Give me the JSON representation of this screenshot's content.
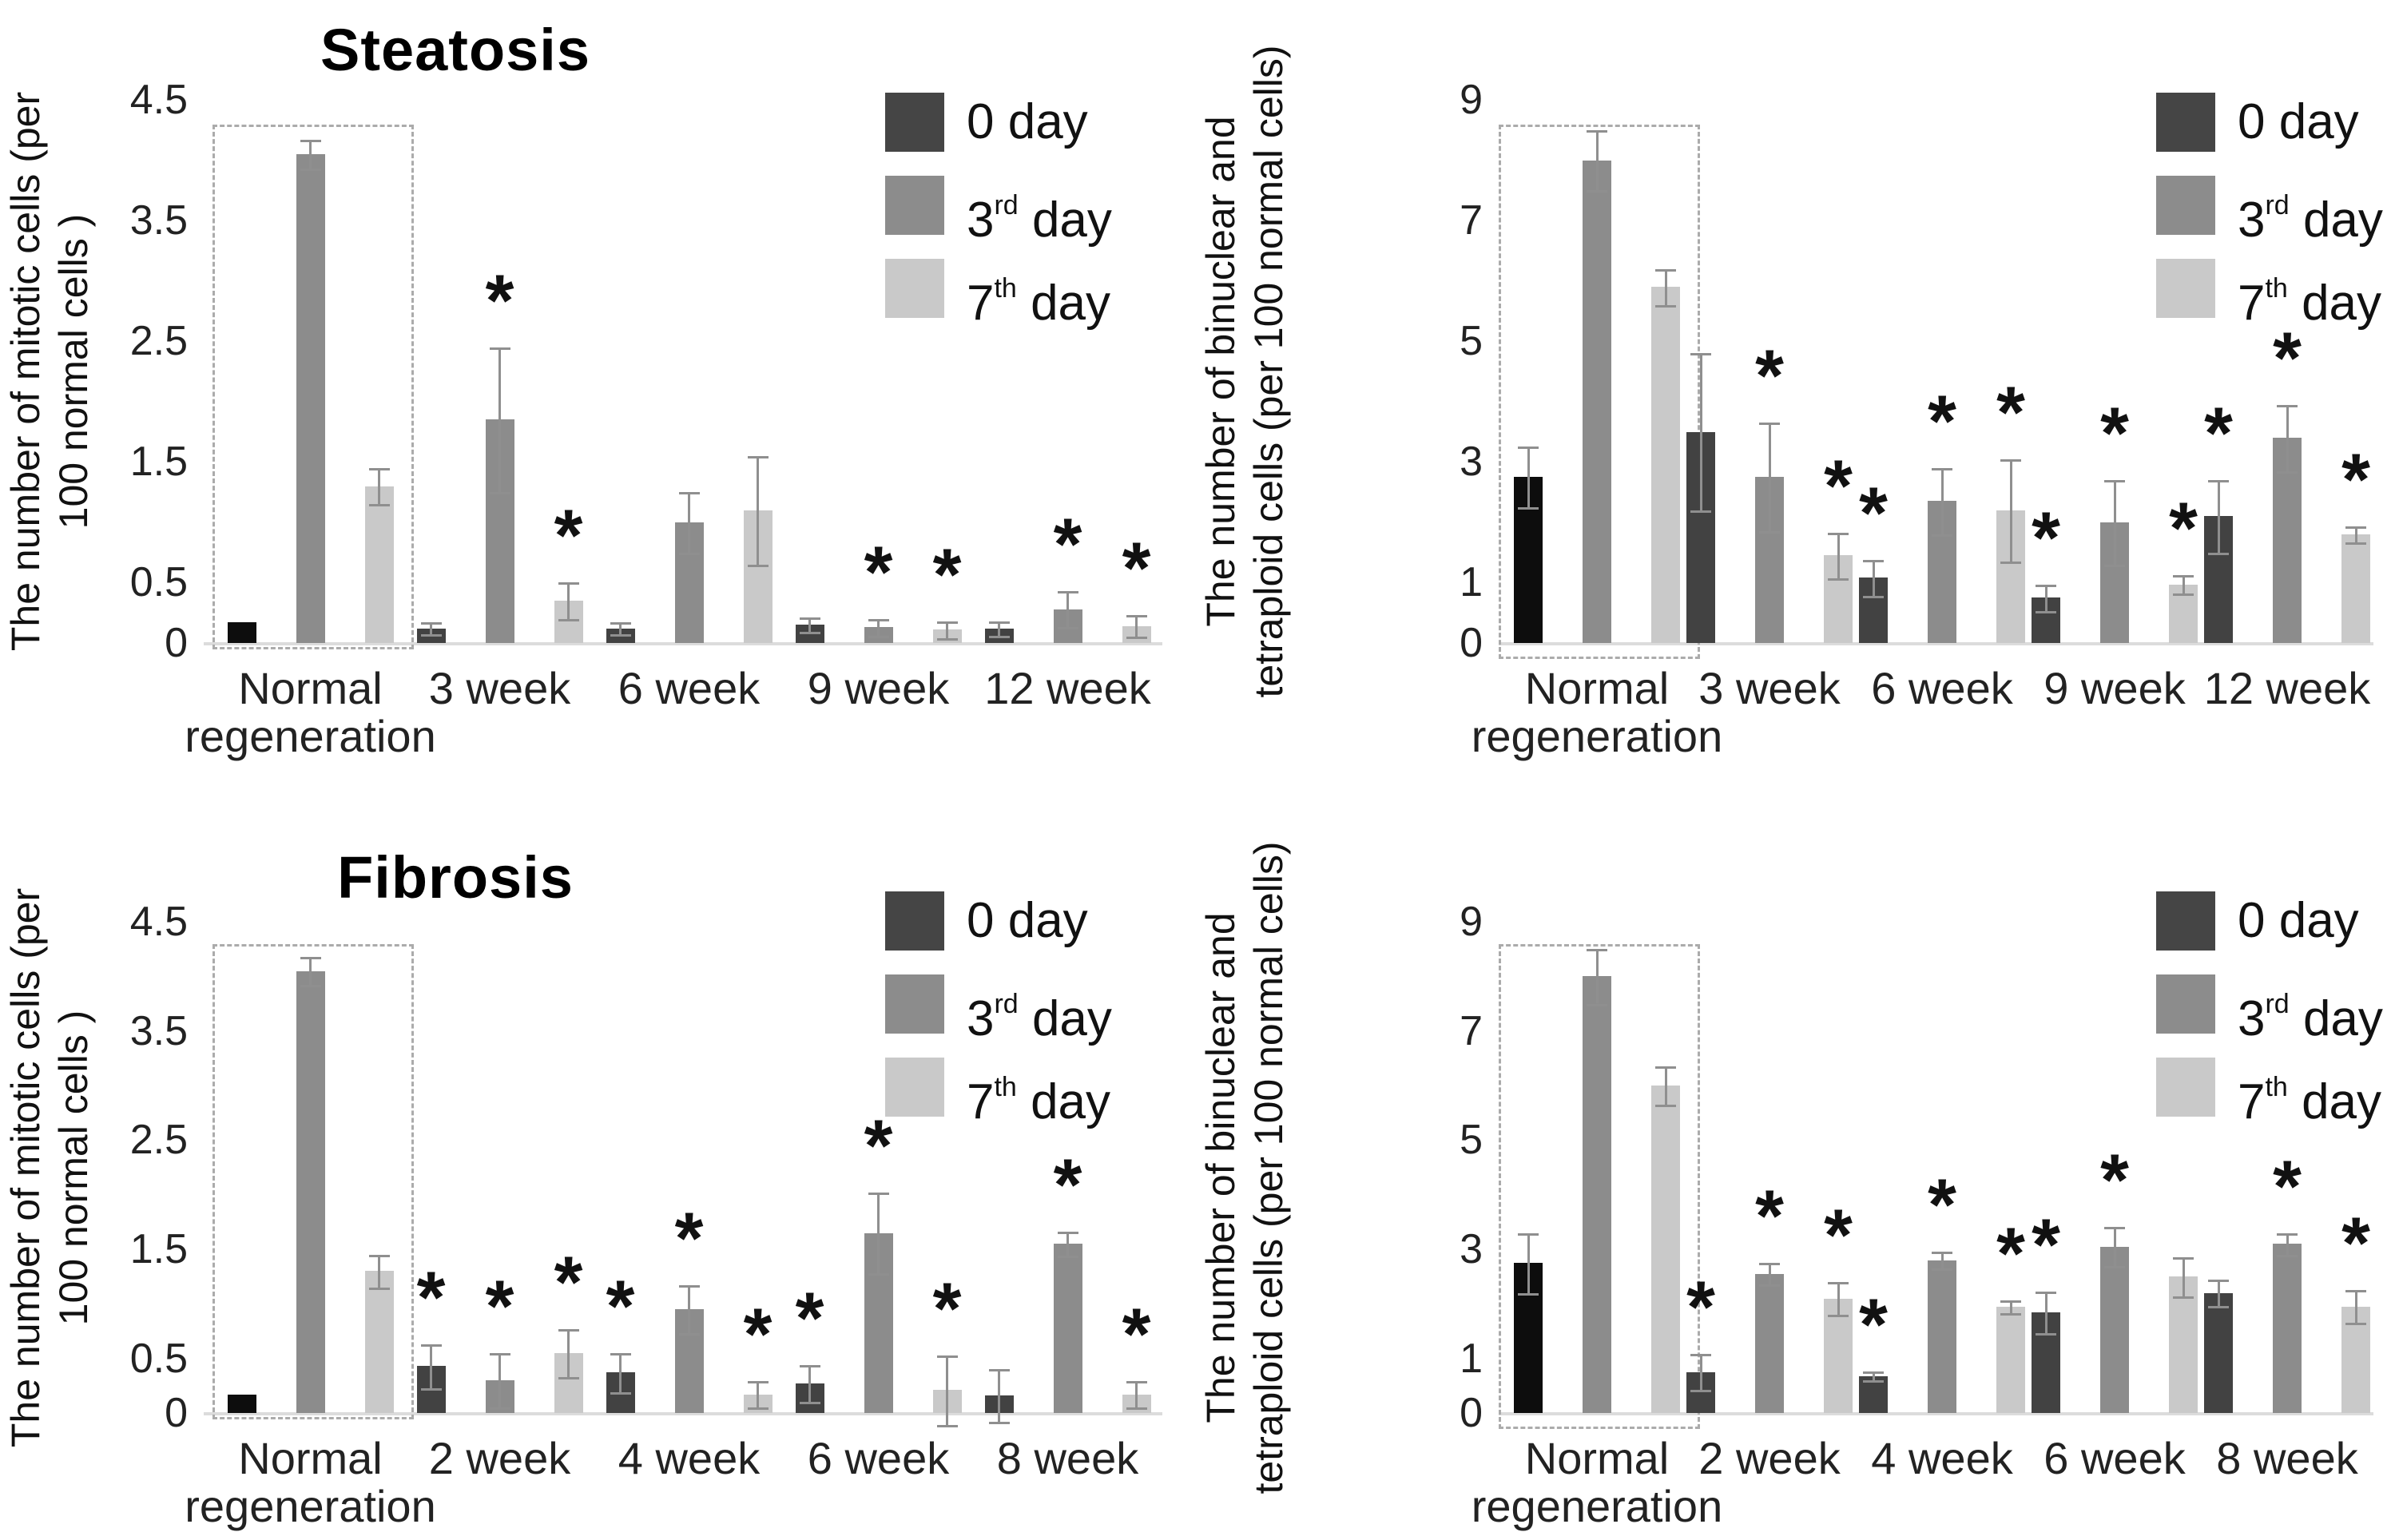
{
  "figure": {
    "background": "#ffffff",
    "panel_titles": [
      "Steatosis",
      "Fibrosis"
    ]
  },
  "legend": {
    "items": [
      {
        "label": "0 day",
        "label_num": "0",
        "label_sup": "",
        "label_rest": " day",
        "color": "#454545"
      },
      {
        "label": "3rd day",
        "label_num": "3",
        "label_sup": "rd",
        "label_rest": " day",
        "color": "#8c8c8c"
      },
      {
        "label": "7th day",
        "label_num": "7",
        "label_sup": "th",
        "label_rest": " day",
        "color": "#c9c9c9"
      }
    ]
  },
  "colors": {
    "series": [
      "#424242",
      "#8c8c8c",
      "#c9c9c9"
    ],
    "normal_regeneration_day0": "#0d0d0d",
    "error_bar": "#8f8f8f",
    "baseline": "#dcdcdc",
    "highlight_box_border": "#ababab"
  },
  "chart_data": [
    {
      "id": "steatosis-mitotic",
      "type": "bar",
      "title": "Steatosis",
      "ylabel_lines": [
        "The number of mitotic cells (per",
        "100 normal cells )"
      ],
      "ylim": [
        0,
        4.5
      ],
      "yticks": [
        0,
        0.5,
        1.5,
        2.5,
        3.5,
        4.5
      ],
      "grid": false,
      "legend_position": "top-right",
      "highlight_box_group": 0,
      "categories": [
        "Normal\nregeneration",
        "3 week",
        "6 week",
        "9 week",
        "12 week"
      ],
      "series": [
        {
          "name": "0 day",
          "values": [
            0.17,
            0.12,
            0.12,
            0.15,
            0.12
          ],
          "errors": [
            null,
            0.05,
            0.05,
            0.06,
            0.06
          ],
          "asterisks": [
            false,
            false,
            false,
            false,
            false
          ]
        },
        {
          "name": "3rd day",
          "values": [
            4.05,
            1.85,
            1.0,
            0.13,
            0.28
          ],
          "errors": [
            0.12,
            0.6,
            0.25,
            0.07,
            0.15
          ],
          "asterisks": [
            false,
            true,
            false,
            true,
            true
          ]
        },
        {
          "name": "7th day",
          "values": [
            1.3,
            0.35,
            1.1,
            0.11,
            0.14
          ],
          "errors": [
            0.15,
            0.15,
            0.45,
            0.07,
            0.09
          ],
          "asterisks": [
            false,
            true,
            false,
            true,
            true
          ]
        }
      ]
    },
    {
      "id": "steatosis-binuclear",
      "type": "bar",
      "title": "",
      "ylabel_lines": [
        "The number of binuclear and",
        "tetraploid cells (per 100 normal cells)"
      ],
      "ylim": [
        0,
        9
      ],
      "yticks": [
        0,
        1,
        3,
        5,
        7,
        9
      ],
      "grid": false,
      "legend_position": "top-right",
      "highlight_box_group": 0,
      "categories": [
        "Normal\nregeneration",
        "3 week",
        "6 week",
        "9 week",
        "12 week"
      ],
      "series": [
        {
          "name": "0 day",
          "values": [
            2.75,
            3.5,
            1.08,
            0.75,
            2.1
          ],
          "errors": [
            0.5,
            1.3,
            0.3,
            0.22,
            0.6
          ],
          "asterisks": [
            false,
            false,
            true,
            true,
            true
          ]
        },
        {
          "name": "3rd day",
          "values": [
            8.0,
            2.75,
            2.35,
            2.0,
            3.4
          ],
          "errors": [
            0.5,
            0.9,
            0.55,
            0.7,
            0.55
          ],
          "asterisks": [
            false,
            true,
            true,
            true,
            true
          ]
        },
        {
          "name": "7th day",
          "values": [
            5.9,
            1.45,
            2.2,
            0.97,
            1.8
          ],
          "errors": [
            0.3,
            0.38,
            0.85,
            0.15,
            0.13
          ],
          "asterisks": [
            false,
            true,
            true,
            true,
            true
          ]
        }
      ]
    },
    {
      "id": "fibrosis-mitotic",
      "type": "bar",
      "title": "Fibrosis",
      "ylabel_lines": [
        "The number of mitotic cells (per",
        "100 normal cells )"
      ],
      "ylim": [
        0,
        4.5
      ],
      "yticks": [
        0,
        0.5,
        1.5,
        2.5,
        3.5,
        4.5
      ],
      "grid": false,
      "legend_position": "top-right",
      "highlight_box_group": 0,
      "categories": [
        "Normal\nregeneration",
        "2 week",
        "4 week",
        "6 week",
        "8 week"
      ],
      "series": [
        {
          "name": "0 day",
          "values": [
            0.17,
            0.43,
            0.37,
            0.27,
            0.16
          ],
          "errors": [
            null,
            0.2,
            0.18,
            0.17,
            0.24
          ],
          "asterisks": [
            false,
            true,
            true,
            true,
            false
          ]
        },
        {
          "name": "3rd day",
          "values": [
            4.05,
            0.3,
            0.95,
            1.65,
            1.55
          ],
          "errors": [
            0.13,
            0.25,
            0.22,
            0.37,
            0.11
          ],
          "asterisks": [
            false,
            true,
            true,
            true,
            true
          ]
        },
        {
          "name": "7th day",
          "values": [
            1.3,
            0.55,
            0.17,
            0.21,
            0.17
          ],
          "errors": [
            0.15,
            0.22,
            0.12,
            0.32,
            0.12
          ],
          "asterisks": [
            false,
            true,
            true,
            true,
            true
          ]
        }
      ]
    },
    {
      "id": "fibrosis-binuclear",
      "type": "bar",
      "title": "",
      "ylabel_lines": [
        "The number of binuclear and",
        "tetraploid cells (per 100 normal cells)"
      ],
      "ylim": [
        0,
        9
      ],
      "yticks": [
        0,
        1,
        3,
        5,
        7,
        9
      ],
      "grid": false,
      "legend_position": "top-right",
      "highlight_box_group": 0,
      "categories": [
        "Normal\nregeneration",
        "2 week",
        "4 week",
        "6 week",
        "8 week"
      ],
      "series": [
        {
          "name": "0 day",
          "values": [
            2.75,
            0.75,
            0.68,
            1.85,
            2.2
          ],
          "errors": [
            0.55,
            0.33,
            0.08,
            0.38,
            0.24
          ],
          "asterisks": [
            false,
            true,
            true,
            true,
            false
          ]
        },
        {
          "name": "3rd day",
          "values": [
            8.0,
            2.55,
            2.8,
            3.05,
            3.1
          ],
          "errors": [
            0.5,
            0.2,
            0.15,
            0.36,
            0.2
          ],
          "asterisks": [
            false,
            true,
            true,
            true,
            true
          ]
        },
        {
          "name": "7th day",
          "values": [
            6.0,
            2.1,
            1.95,
            2.5,
            1.95
          ],
          "errors": [
            0.35,
            0.3,
            0.12,
            0.36,
            0.3
          ],
          "asterisks": [
            false,
            true,
            true,
            false,
            true
          ]
        }
      ]
    }
  ]
}
